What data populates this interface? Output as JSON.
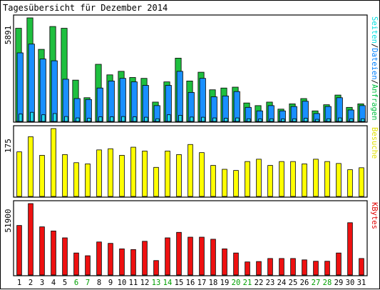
{
  "chart_data": {
    "type": "bar",
    "title": "Tagesübersicht für Dezember 2014",
    "days": [
      "1",
      "2",
      "3",
      "4",
      "5",
      "6",
      "7",
      "8",
      "9",
      "10",
      "11",
      "12",
      "13",
      "14",
      "15",
      "16",
      "17",
      "18",
      "19",
      "20",
      "21",
      "22",
      "23",
      "24",
      "25",
      "26",
      "27",
      "28",
      "29",
      "30",
      "31"
    ],
    "weekend_days": [
      "6",
      "7",
      "13",
      "14",
      "20",
      "21",
      "27",
      "28"
    ],
    "panels": [
      {
        "name": "traffic",
        "ymax_label": "5891",
        "ymax": 5891,
        "legend": [
          {
            "text": "Seiten",
            "color": "#00e0e0"
          },
          {
            "text": "Dateien",
            "color": "#0080ff"
          },
          {
            "text": "Anfragen",
            "color": "#00c040"
          }
        ],
        "series": [
          {
            "name": "Anfragen",
            "color": "#1fbf3f",
            "values": [
              5300,
              5891,
              4100,
              5400,
              5300,
              2350,
              1350,
              3250,
              2650,
              2850,
              2500,
              2450,
              1100,
              2250,
              3600,
              2300,
              2800,
              1800,
              1900,
              1950,
              1050,
              900,
              1100,
              700,
              1000,
              1300,
              600,
              950,
              1500,
              800,
              1000
            ]
          },
          {
            "name": "Dateien",
            "color": "#1a8fff",
            "values": [
              3900,
              4400,
              3550,
              3450,
              2400,
              1300,
              1250,
              1900,
              2300,
              2450,
              2250,
              2050,
              900,
              2050,
              2850,
              1650,
              2450,
              1400,
              1450,
              1700,
              800,
              600,
              900,
              600,
              850,
              1150,
              450,
              850,
              1350,
              650,
              900
            ]
          },
          {
            "name": "Seiten",
            "color": "#20d8f0",
            "values": [
              420,
              520,
              380,
              450,
              280,
              200,
              180,
              260,
              260,
              280,
              260,
              240,
              150,
              380,
              350,
              250,
              240,
              200,
              180,
              200,
              150,
              140,
              150,
              140,
              150,
              180,
              120,
              150,
              200,
              150,
              150
            ]
          }
        ]
      },
      {
        "name": "visits",
        "ymax_label": "175",
        "ymax": 175,
        "legend": [
          {
            "text": "Besuche",
            "color": "#e0e000"
          }
        ],
        "series": [
          {
            "name": "Besuche",
            "color": "#ffff00",
            "values": [
              115,
              154,
              106,
              175,
              108,
              87,
              84,
              120,
              123,
              106,
              127,
              117,
              75,
              117,
              108,
              134,
              113,
              80,
              70,
              67,
              90,
              96,
              80,
              90,
              90,
              84,
              96,
              90,
              85,
              69,
              74
            ]
          }
        ]
      },
      {
        "name": "volume",
        "ymax_label": "51900",
        "ymax": 51900,
        "legend": [
          {
            "text": "KBytes",
            "color": "#e00000"
          }
        ],
        "series": [
          {
            "name": "KBytes",
            "color": "#ee1111",
            "values": [
              36000,
              51900,
              35000,
              32000,
              27000,
              16000,
              14000,
              24000,
              23000,
              19000,
              18500,
              24500,
              10500,
              27000,
              31000,
              27500,
              27500,
              26000,
              19000,
              16000,
              9500,
              9800,
              12000,
              12000,
              12000,
              11000,
              10000,
              10000,
              16000,
              38000,
              12000
            ]
          }
        ]
      }
    ]
  }
}
